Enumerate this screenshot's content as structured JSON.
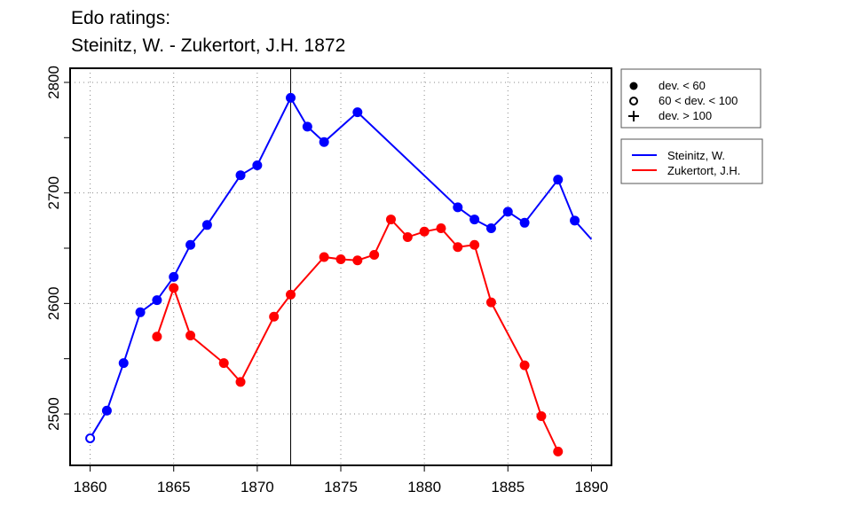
{
  "chart_data": {
    "type": "line",
    "title": [
      "Edo ratings:",
      "Steinitz, W. - Zukertort, J.H. 1872"
    ],
    "xlabel": "",
    "ylabel": "",
    "xlim": [
      1858.8,
      1891.2
    ],
    "ylim": [
      2453.5,
      2812.8
    ],
    "x_ticks": [
      1860,
      1865,
      1870,
      1875,
      1880,
      1885,
      1890
    ],
    "y_ticks_labeled": [
      2500,
      2600,
      2700,
      2800
    ],
    "y_ticks_minor": [
      2550,
      2650,
      2750
    ],
    "grid": true,
    "vertical_marker_x": 1872,
    "symbol_legend": {
      "placement": "top-right outside",
      "entries": [
        {
          "symbol": "filled-circle",
          "label": "dev. < 60"
        },
        {
          "symbol": "open-circle",
          "label": "60 < dev. < 100"
        },
        {
          "symbol": "plus",
          "label": "dev. > 100"
        }
      ]
    },
    "series": [
      {
        "name": "Steinitz, W.",
        "color": "#0000ff",
        "x": [
          1860,
          1861,
          1862,
          1863,
          1864,
          1865,
          1866,
          1867,
          1869,
          1870,
          1872,
          1873,
          1874,
          1876,
          1882,
          1883,
          1884,
          1885,
          1886,
          1888,
          1889,
          1890
        ],
        "y": [
          2478,
          2503,
          2546,
          2592,
          2603,
          2624,
          2653,
          2671,
          2716,
          2725,
          2786,
          2760,
          2746,
          2773,
          2687,
          2676,
          2668,
          2683,
          2673,
          2712,
          2675,
          2658
        ],
        "markers": [
          "open",
          "filled",
          "filled",
          "filled",
          "filled",
          "filled",
          "filled",
          "filled",
          "filled",
          "filled",
          "filled",
          "filled",
          "filled",
          "filled",
          "filled",
          "filled",
          "filled",
          "filled",
          "filled",
          "filled",
          "filled",
          "none"
        ]
      },
      {
        "name": "Zukertort, J.H.",
        "color": "#ff0000",
        "x": [
          1864,
          1865,
          1866,
          1868,
          1869,
          1871,
          1872,
          1874,
          1875,
          1876,
          1877,
          1878,
          1879,
          1880,
          1881,
          1882,
          1883,
          1884,
          1886,
          1887,
          1888
        ],
        "y": [
          2570,
          2614,
          2571,
          2546,
          2529,
          2588,
          2608,
          2642,
          2640,
          2639,
          2644,
          2676,
          2660,
          2665,
          2668,
          2651,
          2653,
          2601,
          2544,
          2498,
          2466
        ],
        "markers": [
          "filled",
          "filled",
          "filled",
          "filled",
          "filled",
          "filled",
          "filled",
          "filled",
          "filled",
          "filled",
          "filled",
          "filled",
          "filled",
          "filled",
          "filled",
          "filled",
          "filled",
          "filled",
          "filled",
          "filled",
          "filled"
        ]
      }
    ]
  }
}
